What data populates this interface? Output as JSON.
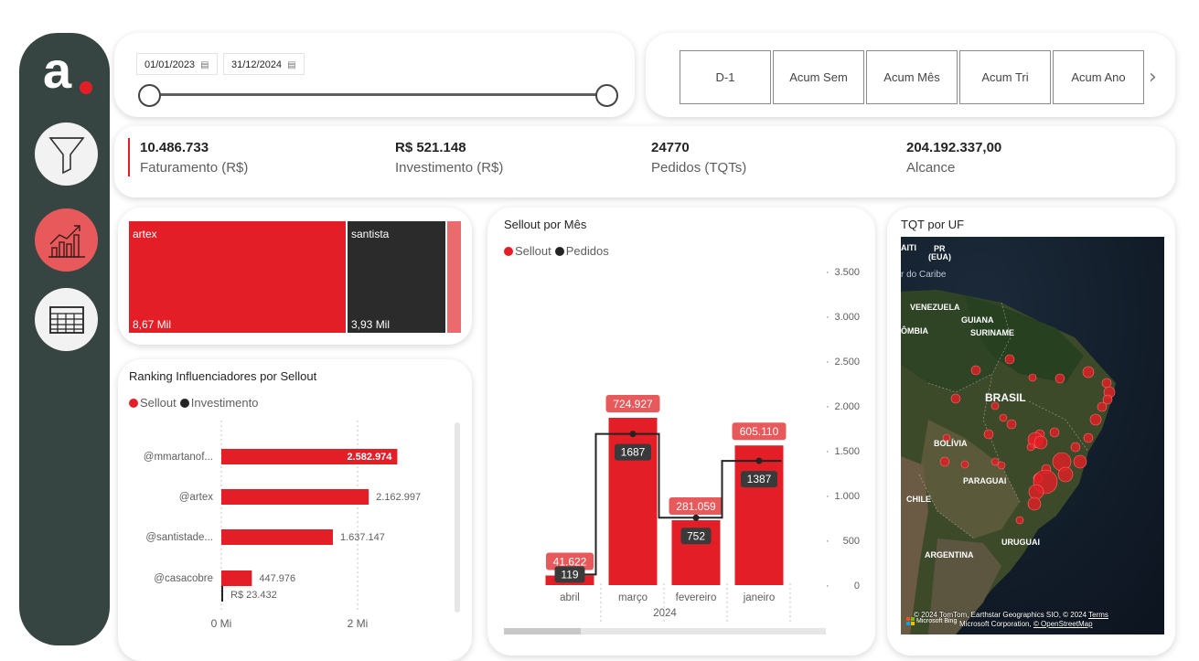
{
  "sidebar": {
    "logo_letter": "a",
    "logo_dot": ".",
    "buttons": [
      {
        "icon": "funnel-icon"
      },
      {
        "icon": "line-chart-icon"
      },
      {
        "icon": "table-icon"
      }
    ]
  },
  "date_filter": {
    "start": "01/01/2023",
    "end": "31/12/2024",
    "range_fraction": [
      0,
      1
    ]
  },
  "periods": [
    "D-1",
    "Acum Sem",
    "Acum Mês",
    "Acum Tri",
    "Acum Ano"
  ],
  "kpis": [
    {
      "value": "10.486.733",
      "label": "Faturamento (R$)"
    },
    {
      "value": "R$ 521.148",
      "label": "Investimento (R$)"
    },
    {
      "value": "24770",
      "label": "Pedidos (TQTs)"
    },
    {
      "value": "204.192.337,00",
      "label": "Alcance"
    }
  ],
  "treemap": {
    "items": [
      {
        "name": "artex",
        "value_label": "8,67 Mil",
        "value": 8670,
        "color": "#e41e26"
      },
      {
        "name": "santista",
        "value_label": "3,93 Mil",
        "value": 3930,
        "color": "#2b2b2b"
      },
      {
        "name": "",
        "value_label": "",
        "value": 500,
        "color": "#ea6b6e"
      }
    ]
  },
  "ranking": {
    "title": "Ranking Influenciadores por Sellout",
    "legend": [
      "Sellout",
      "Investimento"
    ],
    "x_ticks": [
      "0 Mi",
      "2 Mi"
    ]
  },
  "sellout_mes": {
    "title": "Sellout por Mês",
    "legend": [
      "Sellout",
      "Pedidos"
    ],
    "x_group": "2024"
  },
  "map": {
    "title": "TQT por UF",
    "labels": [
      {
        "text": "AITI",
        "cls": "w"
      },
      {
        "text": "PR",
        "cls": "w"
      },
      {
        "text": "(EUA)",
        "cls": "w"
      },
      {
        "text": "r do Caribe",
        "cls": "s"
      },
      {
        "text": "VENEZUELA",
        "cls": "w"
      },
      {
        "text": "GUIANA",
        "cls": "w"
      },
      {
        "text": "SURINAME",
        "cls": "w"
      },
      {
        "text": "ÔMBIA",
        "cls": "w"
      },
      {
        "text": "BRASIL",
        "cls": "b"
      },
      {
        "text": "BOLÍVIA",
        "cls": "w"
      },
      {
        "text": "PARAGUAI",
        "cls": "w"
      },
      {
        "text": "CHILE",
        "cls": "w"
      },
      {
        "text": "URUGUAI",
        "cls": "w"
      },
      {
        "text": "ARGENTINA",
        "cls": "w"
      }
    ],
    "attribution_1": "© 2024 TomTom, Earthstar Geographics SIO, © 2024",
    "attribution_link": "Terms",
    "attribution_2": "Microsoft Corporation,",
    "attribution_osm": "© OpenStreetMap",
    "attribution_brand": "Microsoft Bing",
    "bubble_color": "#e41e26"
  },
  "chart_data": [
    {
      "type": "bar",
      "title": "Ranking Influenciadores por Sellout",
      "orientation": "horizontal",
      "categories": [
        "@mmartanof...",
        "@artex",
        "@santistade...",
        "@casacobre"
      ],
      "series": [
        {
          "name": "Sellout",
          "values": [
            2582974,
            2162997,
            1637147,
            447976
          ],
          "labels": [
            "2.582.974",
            "2.162.997",
            "1.637.147",
            "447.976"
          ],
          "color": "#e41e26"
        },
        {
          "name": "Investimento",
          "values": [
            0,
            0,
            0,
            23432
          ],
          "labels": [
            "",
            "",
            "",
            "R$ 23.432"
          ],
          "color": "#252423"
        }
      ],
      "xlim": [
        0,
        3000000
      ],
      "xticks": [
        0,
        2000000
      ],
      "grid": true
    },
    {
      "type": "bar",
      "title": "Sellout por Mês",
      "categories": [
        "abril",
        "março",
        "fevereiro",
        "janeiro"
      ],
      "series": [
        {
          "name": "Sellout",
          "type": "bar",
          "values": [
            41622,
            724927,
            281059,
            605110
          ],
          "labels": [
            "41.622",
            "724.927",
            "281.059",
            "605.110"
          ],
          "color": "#e41e26"
        },
        {
          "name": "Pedidos",
          "type": "step-line",
          "values": [
            119,
            1687,
            752,
            1387
          ],
          "labels": [
            "119",
            "1687",
            "752",
            "1387"
          ],
          "color": "#252423"
        }
      ],
      "y_right_ticks": [
        0,
        500,
        1000,
        1500,
        2000,
        2500,
        3000,
        3500
      ],
      "y_right_tick_labels": [
        "0",
        "500",
        "1.000",
        "1.500",
        "2.000",
        "2.500",
        "3.000",
        "3.500"
      ],
      "y_right_lim": [
        0,
        3500
      ],
      "y_left_lim": [
        0,
        780000
      ]
    }
  ]
}
